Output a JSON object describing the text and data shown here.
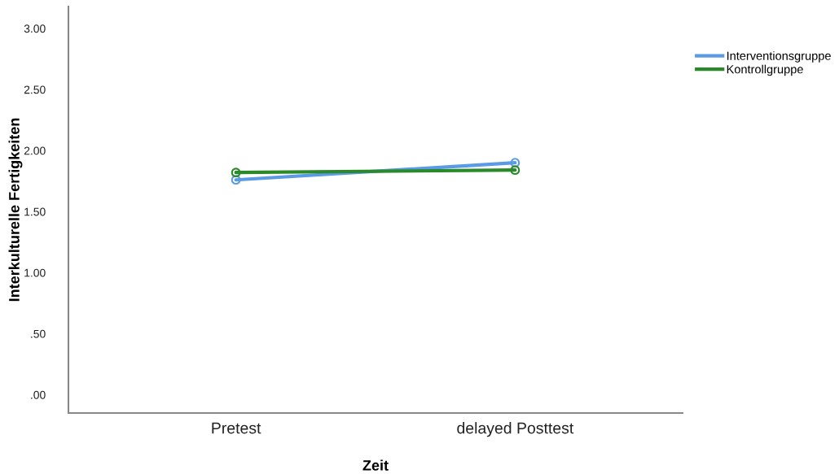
{
  "chart_data": {
    "type": "line",
    "xlabel": "Zeit",
    "ylabel": "Interkulturelle Fertigkeiten",
    "categories": [
      "Pretest",
      "delayed Posttest"
    ],
    "series": [
      {
        "name": "Interventionsgruppe",
        "color": "#5b9be6",
        "values": [
          1.76,
          1.9
        ]
      },
      {
        "name": "Kontrollgruppe",
        "color": "#2a8a2a",
        "values": [
          1.82,
          1.84
        ]
      }
    ],
    "ylim": [
      -0.15,
      3.18
    ],
    "yticks": [
      {
        "value": 0,
        "label": ".00"
      },
      {
        "value": 0.5,
        "label": ".50"
      },
      {
        "value": 1,
        "label": "1.00"
      },
      {
        "value": 1.5,
        "label": "1.50"
      },
      {
        "value": 2,
        "label": "2.00"
      },
      {
        "value": 2.5,
        "label": "2.50"
      },
      {
        "value": 3,
        "label": "3.00"
      }
    ],
    "grid": false,
    "legend": "top right",
    "marker": "circle",
    "line_style": "solid"
  }
}
